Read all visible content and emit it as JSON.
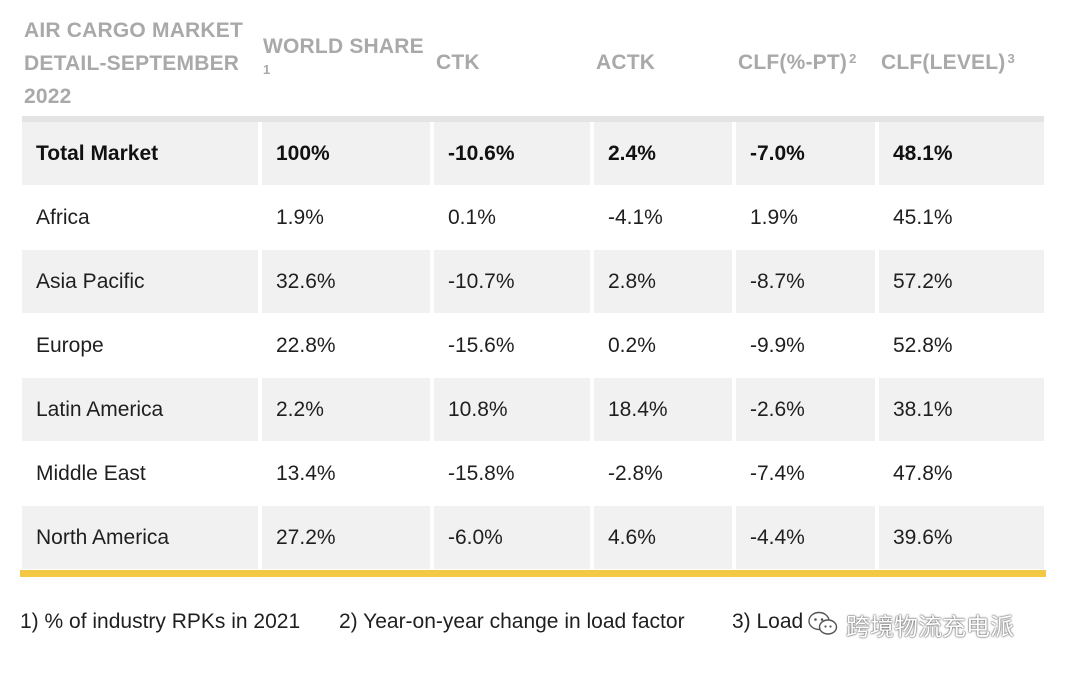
{
  "header": {
    "title_lines": [
      "AIR CARGO MARKET",
      "DETAIL-SEPTEMBER",
      "2022"
    ],
    "world_share": "WORLD SHARE",
    "world_share_note": "1",
    "ctk": "CTK",
    "actk": "ACTK",
    "clf_pt": "CLF(%-PT)",
    "clf_pt_note": "2",
    "clf_level": "CLF(LEVEL)",
    "clf_level_note": "3"
  },
  "rows": [
    {
      "region": "Total Market",
      "share": "100%",
      "ctk": "-10.6%",
      "actk": "2.4%",
      "clf_pt": "-7.0%",
      "clf_level": "48.1%"
    },
    {
      "region": "Africa",
      "share": "1.9%",
      "ctk": "0.1%",
      "actk": "-4.1%",
      "clf_pt": "1.9%",
      "clf_level": "45.1%"
    },
    {
      "region": "Asia Pacific",
      "share": "32.6%",
      "ctk": "-10.7%",
      "actk": "2.8%",
      "clf_pt": "-8.7%",
      "clf_level": "57.2%"
    },
    {
      "region": "Europe",
      "share": "22.8%",
      "ctk": "-15.6%",
      "actk": "0.2%",
      "clf_pt": "-9.9%",
      "clf_level": "52.8%"
    },
    {
      "region": "Latin America",
      "share": "2.2%",
      "ctk": "10.8%",
      "actk": "18.4%",
      "clf_pt": "-2.6%",
      "clf_level": "38.1%"
    },
    {
      "region": "Middle East",
      "share": "13.4%",
      "ctk": "-15.8%",
      "actk": "-2.8%",
      "clf_pt": "-7.4%",
      "clf_level": "47.8%"
    },
    {
      "region": "North America",
      "share": "27.2%",
      "ctk": "-6.0%",
      "actk": "4.6%",
      "clf_pt": "-4.4%",
      "clf_level": "39.6%"
    }
  ],
  "footnotes": {
    "note1": "1) % of industry RPKs in 2021",
    "note2": "2) Year-on-year change in load factor",
    "note3": "3) Load"
  },
  "watermark": {
    "text": "跨境物流充电派",
    "icon": "wechat-icon"
  },
  "colors": {
    "header_text": "#a9a9a9",
    "row_shade": "#f1f1f1",
    "accent_rule": "#f3c845"
  }
}
